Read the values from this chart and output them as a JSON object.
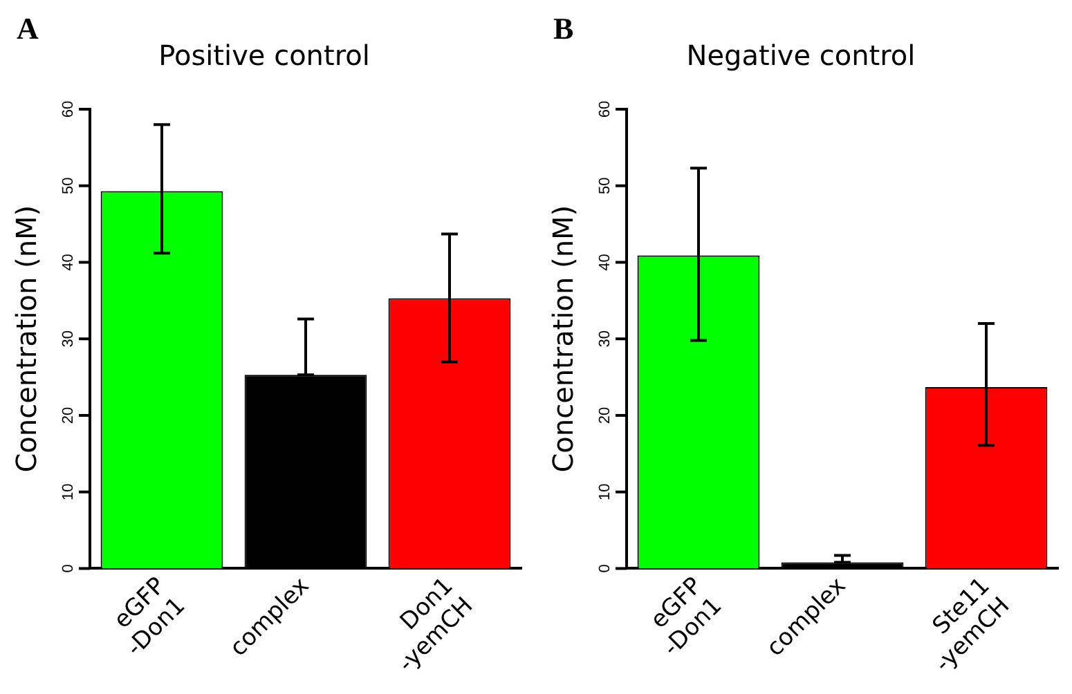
{
  "chart_data": [
    {
      "type": "bar",
      "title": "Positive control",
      "ylabel": "Concentration (nM)",
      "annotations": [
        "A"
      ],
      "categories": [
        "eGFP -Don1",
        "complex",
        "Don1 -yemCH"
      ],
      "values": [
        49.3,
        25.3,
        35.3
      ],
      "colors": [
        "#00ff00",
        "#000000",
        "#ff0000"
      ],
      "errors": [
        [
          41.2,
          58.0
        ],
        [
          25.3,
          32.6
        ],
        [
          27.0,
          43.7
        ]
      ],
      "ylim": [
        0,
        60
      ],
      "yticks": [
        0,
        10,
        20,
        30,
        40,
        50,
        60
      ],
      "grid": false,
      "legend": false
    },
    {
      "type": "bar",
      "title": "Negative control",
      "ylabel": "Concentration (nM)",
      "annotations": [
        "B"
      ],
      "categories": [
        "eGFP -Don1",
        "complex",
        "Ste11 -yemCH"
      ],
      "values": [
        40.9,
        0.8,
        23.7
      ],
      "colors": [
        "#00ff00",
        "#000000",
        "#ff0000"
      ],
      "errors": [
        [
          29.8,
          52.3
        ],
        [
          0.8,
          1.7
        ],
        [
          16.1,
          32.0
        ]
      ],
      "ylim": [
        0,
        60
      ],
      "yticks": [
        0,
        10,
        20,
        30,
        40,
        50,
        60
      ],
      "grid": false,
      "legend": false
    }
  ]
}
